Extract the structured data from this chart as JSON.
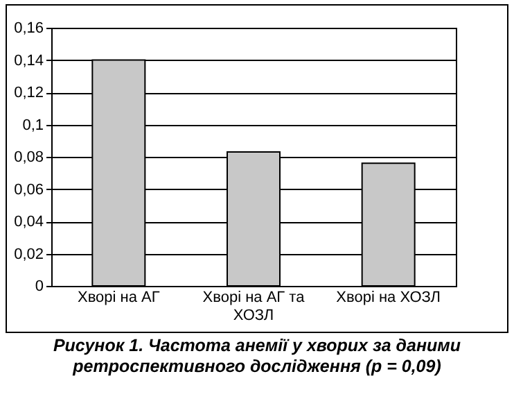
{
  "chart_data": {
    "type": "bar",
    "categories": [
      "Хворі на АГ",
      "Хворі на АГ та ХОЗЛ",
      "Хворі на ХОЗЛ"
    ],
    "values": [
      0.14,
      0.083,
      0.076
    ],
    "color": "#c8c8c8",
    "ylim": [
      0,
      0.16
    ],
    "yticks": [
      0,
      {
        "value": 0.02,
        "label": "0,02"
      },
      {
        "value": 0.04,
        "label": "0,04"
      },
      {
        "value": 0.06,
        "label": "0,06"
      },
      {
        "value": 0.08,
        "label": "0,08"
      },
      {
        "value": 0.1,
        "label": "0,1"
      },
      {
        "value": 0.12,
        "label": "0,12"
      },
      {
        "value": 0.14,
        "label": "0,14"
      },
      {
        "value": 0.16,
        "label": "0,16"
      }
    ],
    "grid": "y",
    "annotations": [
      "Рисунок 1. Частота анемії у хворих за даними ретроспективного дослідження (p = 0,09)"
    ]
  }
}
